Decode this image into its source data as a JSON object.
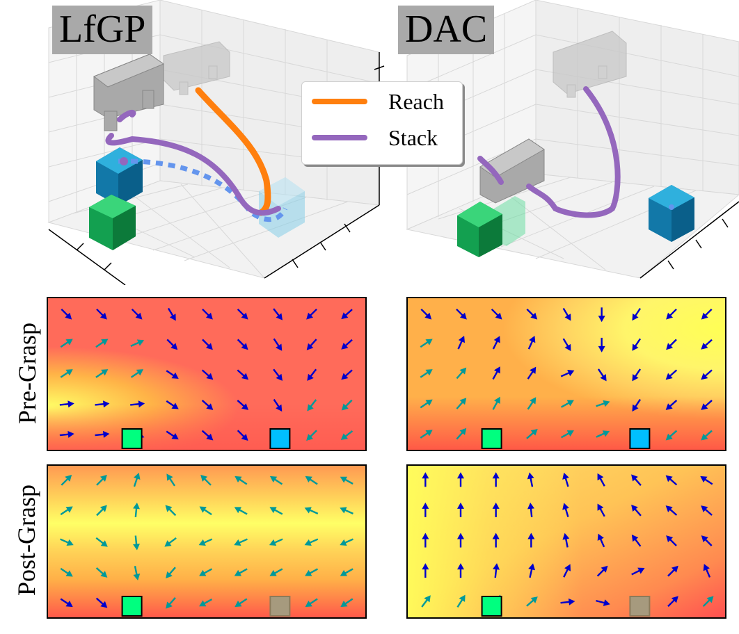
{
  "columns": {
    "left_title": "LfGP",
    "right_title": "DAC"
  },
  "legend": {
    "items": [
      {
        "label": "Reach",
        "color": "#ff7f0e"
      },
      {
        "label": "Stack",
        "color": "#9467bd"
      }
    ]
  },
  "rows": {
    "top_label": "Pre-Grasp",
    "bottom_label": "Post-Grasp"
  },
  "colors": {
    "arrow_primary": "#0000cc",
    "arrow_secondary": "#009999",
    "green_block": "#00ff7f",
    "blue_block": "#00bfff",
    "ghost_block": "#a69a7e",
    "field_high": "#ffff55",
    "field_low": "#ff4444"
  },
  "chart_data": [
    {
      "type": "scatter",
      "panel": "LfGP 3D trajectories",
      "series": [
        {
          "name": "Reach"
        },
        {
          "name": "Stack"
        }
      ]
    },
    {
      "type": "scatter",
      "panel": "DAC 3D trajectories",
      "series": [
        {
          "name": "Stack"
        }
      ]
    },
    {
      "type": "heatmap",
      "panel": "LfGP Pre-Grasp",
      "cols": 9,
      "rows": 5,
      "blocks": [
        {
          "name": "green",
          "col": 2.4
        },
        {
          "name": "blue",
          "col": 6.6
        }
      ],
      "vectors": [
        [
          [
            1,
            -1,
            0
          ],
          [
            1,
            -1,
            0
          ],
          [
            1,
            -1,
            0
          ],
          [
            0.6,
            -1,
            0
          ],
          [
            0.9,
            -0.9,
            0
          ],
          [
            0.9,
            -0.9,
            0
          ],
          [
            0.7,
            -0.9,
            0
          ],
          [
            -0.9,
            -0.9,
            0
          ],
          [
            -0.9,
            -0.8,
            0
          ]
        ],
        [
          [
            0.9,
            0.6,
            1
          ],
          [
            0.9,
            0.6,
            1
          ],
          [
            0.9,
            0.4,
            1
          ],
          [
            0.8,
            -0.8,
            0
          ],
          [
            0.9,
            -0.9,
            0
          ],
          [
            0.9,
            -0.9,
            0
          ],
          [
            0.6,
            -0.9,
            0
          ],
          [
            -0.8,
            -0.9,
            0
          ],
          [
            -0.9,
            -0.8,
            0
          ]
        ],
        [
          [
            0.9,
            0.6,
            1
          ],
          [
            0.9,
            0.6,
            1
          ],
          [
            0.9,
            0.6,
            1
          ],
          [
            0.9,
            -0.6,
            0
          ],
          [
            0.9,
            -0.8,
            0
          ],
          [
            0.9,
            -0.8,
            0
          ],
          [
            0.7,
            -0.9,
            0
          ],
          [
            -0.7,
            -0.9,
            0
          ],
          [
            -0.9,
            -0.8,
            0
          ]
        ],
        [
          [
            1,
            0.1,
            0
          ],
          [
            1,
            0.1,
            0
          ],
          [
            1,
            0.1,
            0
          ],
          [
            0.9,
            -0.6,
            0
          ],
          [
            0.9,
            -0.8,
            0
          ],
          [
            0.9,
            -0.8,
            0
          ],
          [
            0.6,
            -0.9,
            0
          ],
          [
            -0.7,
            -0.9,
            1
          ],
          [
            -0.9,
            -0.9,
            1
          ]
        ],
        [
          [
            1,
            0.1,
            0
          ],
          [
            1,
            0.1,
            0
          ],
          [
            0.9,
            -0.3,
            0
          ],
          [
            0.9,
            -0.6,
            0
          ],
          [
            0.9,
            -0.8,
            0
          ],
          [
            0.9,
            -0.9,
            0
          ],
          [
            0.6,
            -0.9,
            0
          ],
          [
            -0.7,
            -0.7,
            1
          ],
          [
            -0.9,
            -0.7,
            1
          ]
        ]
      ]
    },
    {
      "type": "heatmap",
      "panel": "DAC Pre-Grasp",
      "cols": 9,
      "rows": 5,
      "blocks": [
        {
          "name": "green",
          "col": 2.4
        },
        {
          "name": "blue",
          "col": 6.6
        }
      ],
      "vectors": [
        [
          [
            0.9,
            -0.9,
            0
          ],
          [
            0.9,
            -0.9,
            0
          ],
          [
            0.9,
            -0.9,
            0
          ],
          [
            0.9,
            -0.9,
            0
          ],
          [
            0.6,
            -1,
            0
          ],
          [
            0,
            -1,
            0
          ],
          [
            -0.6,
            -0.9,
            0
          ],
          [
            -0.9,
            -0.9,
            0
          ],
          [
            -0.9,
            -0.9,
            0
          ]
        ],
        [
          [
            0.9,
            0.6,
            1
          ],
          [
            0.4,
            0.9,
            0
          ],
          [
            0.1,
            0.2,
            0
          ],
          [
            0.4,
            0.9,
            0
          ],
          [
            0.6,
            -1,
            0
          ],
          [
            0,
            -1,
            0
          ],
          [
            -0.6,
            -0.9,
            0
          ],
          [
            -0.9,
            -0.9,
            0
          ],
          [
            -0.9,
            -0.8,
            0
          ]
        ],
        [
          [
            0.9,
            0.6,
            1
          ],
          [
            0.7,
            0.8,
            1
          ],
          [
            0.5,
            0.9,
            0
          ],
          [
            0.6,
            0.9,
            0
          ],
          [
            0.9,
            0.4,
            0
          ],
          [
            0.6,
            -0.9,
            0
          ],
          [
            -0.6,
            -0.9,
            0
          ],
          [
            -0.9,
            -0.8,
            0
          ],
          [
            -0.9,
            -0.8,
            0
          ]
        ],
        [
          [
            0.9,
            0.6,
            1
          ],
          [
            0.7,
            0.8,
            1
          ],
          [
            0.5,
            0.9,
            1
          ],
          [
            0.6,
            0.9,
            1
          ],
          [
            0.9,
            0.5,
            1
          ],
          [
            0.9,
            0.3,
            1
          ],
          [
            -0.6,
            -0.9,
            0
          ],
          [
            -0.9,
            -0.8,
            0
          ],
          [
            -0.9,
            -0.8,
            0
          ]
        ],
        [
          [
            0.9,
            0.6,
            1
          ],
          [
            0.7,
            0.8,
            1
          ],
          [
            0.7,
            0.8,
            1
          ],
          [
            0.8,
            0.7,
            1
          ],
          [
            0.9,
            0.5,
            1
          ],
          [
            0.9,
            0.4,
            1
          ],
          [
            0.9,
            0.4,
            1
          ],
          [
            -0.9,
            -0.8,
            1
          ],
          [
            -0.9,
            -0.8,
            1
          ]
        ]
      ]
    },
    {
      "type": "heatmap",
      "panel": "LfGP Post-Grasp",
      "cols": 9,
      "rows": 5,
      "blocks": [
        {
          "name": "green",
          "col": 2.4
        },
        {
          "name": "ghost",
          "col": 6.6
        }
      ],
      "vectors": [
        [
          [
            0.9,
            0.9,
            1
          ],
          [
            0.9,
            0.9,
            1
          ],
          [
            0.3,
            0.9,
            1
          ],
          [
            -0.6,
            0.9,
            1
          ],
          [
            -0.8,
            0.8,
            1
          ],
          [
            -0.9,
            0.6,
            1
          ],
          [
            -0.9,
            0.6,
            1
          ],
          [
            -0.9,
            0.6,
            1
          ],
          [
            -0.9,
            0.5,
            1
          ]
        ],
        [
          [
            0.9,
            0.6,
            1
          ],
          [
            0.9,
            0.9,
            1
          ],
          [
            0.1,
            1,
            1
          ],
          [
            -0.8,
            0.8,
            1
          ],
          [
            -0.9,
            0.6,
            1
          ],
          [
            -0.9,
            0.5,
            1
          ],
          [
            -0.9,
            0.5,
            1
          ],
          [
            -0.9,
            0.4,
            1
          ],
          [
            -0.9,
            0.4,
            1
          ]
        ],
        [
          [
            0.9,
            -0.4,
            1
          ],
          [
            0.9,
            -0.7,
            1
          ],
          [
            0.1,
            -1,
            1
          ],
          [
            -0.8,
            -0.6,
            1
          ],
          [
            -0.9,
            -0.4,
            1
          ],
          [
            -0.9,
            -0.4,
            1
          ],
          [
            -0.9,
            -0.4,
            1
          ],
          [
            -0.9,
            -0.4,
            1
          ],
          [
            -0.9,
            -0.4,
            1
          ]
        ],
        [
          [
            0.9,
            -0.6,
            1
          ],
          [
            0.9,
            -0.8,
            1
          ],
          [
            0.2,
            -1,
            1
          ],
          [
            -0.7,
            -0.8,
            1
          ],
          [
            -0.9,
            -0.5,
            1
          ],
          [
            -0.9,
            -0.5,
            1
          ],
          [
            -0.9,
            -0.5,
            1
          ],
          [
            -0.9,
            -0.5,
            1
          ],
          [
            -0.9,
            -0.5,
            1
          ]
        ],
        [
          [
            0.9,
            -0.6,
            0
          ],
          [
            0.9,
            -0.8,
            0
          ],
          [
            0.2,
            -1,
            0
          ],
          [
            -0.7,
            -0.8,
            1
          ],
          [
            -0.9,
            -0.5,
            1
          ],
          [
            -0.9,
            -0.6,
            1
          ],
          [
            -0.9,
            -0.6,
            1
          ],
          [
            -0.9,
            -0.6,
            1
          ],
          [
            -0.9,
            -0.6,
            1
          ]
        ]
      ]
    },
    {
      "type": "heatmap",
      "panel": "DAC Post-Grasp",
      "cols": 9,
      "rows": 5,
      "blocks": [
        {
          "name": "green",
          "col": 2.4
        },
        {
          "name": "ghost",
          "col": 6.6
        }
      ],
      "vectors": [
        [
          [
            0,
            1,
            0
          ],
          [
            0,
            1,
            0
          ],
          [
            0,
            1,
            0
          ],
          [
            -0.2,
            1,
            0
          ],
          [
            -0.3,
            1,
            0
          ],
          [
            -0.5,
            0.9,
            0
          ],
          [
            -0.7,
            0.8,
            0
          ],
          [
            -0.8,
            0.7,
            0
          ],
          [
            -0.9,
            0.6,
            0
          ]
        ],
        [
          [
            0,
            1,
            0
          ],
          [
            0,
            1,
            0
          ],
          [
            0,
            1,
            0
          ],
          [
            -0.1,
            1,
            0
          ],
          [
            -0.3,
            1,
            0
          ],
          [
            -0.5,
            0.9,
            0
          ],
          [
            -0.7,
            0.8,
            0
          ],
          [
            -0.8,
            0.7,
            0
          ],
          [
            -0.8,
            0.7,
            0
          ]
        ],
        [
          [
            0,
            1,
            0
          ],
          [
            0,
            1,
            0
          ],
          [
            0,
            1,
            0
          ],
          [
            0,
            1,
            0
          ],
          [
            -0.2,
            1,
            0
          ],
          [
            -0.4,
            0.9,
            0
          ],
          [
            -0.6,
            0.8,
            0
          ],
          [
            -0.7,
            0.7,
            0
          ],
          [
            -0.7,
            0.7,
            0
          ]
        ],
        [
          [
            0,
            1,
            0
          ],
          [
            0,
            1,
            0
          ],
          [
            0.1,
            0.9,
            0
          ],
          [
            0.2,
            0.9,
            0
          ],
          [
            0.4,
            0.8,
            0
          ],
          [
            0.6,
            0.6,
            0
          ],
          [
            0.6,
            0.3,
            0
          ],
          [
            0.2,
            0.2,
            0
          ],
          [
            -0.3,
            0.7,
            0
          ]
        ],
        [
          [
            0.6,
            0.8,
            1
          ],
          [
            0.5,
            0.8,
            1
          ],
          [
            0.5,
            0.8,
            1
          ],
          [
            0.7,
            0.6,
            1
          ],
          [
            0.9,
            0.1,
            0
          ],
          [
            0.8,
            -0.2,
            0
          ],
          [
            0.7,
            0.3,
            0
          ],
          [
            0.4,
            0.4,
            0
          ],
          [
            0.6,
            0.6,
            1
          ]
        ]
      ]
    }
  ]
}
